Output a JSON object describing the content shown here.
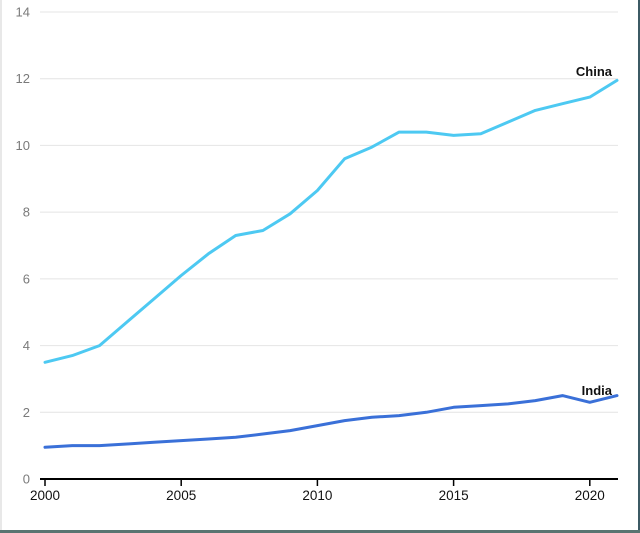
{
  "window": {
    "background": "#ffffff",
    "edge_left_color": "#e8e8e8",
    "edge_right_color": "#3c5a64",
    "edge_bottom_color": "#597471"
  },
  "chart_data": {
    "type": "line",
    "title": "",
    "xlabel": "",
    "ylabel": "",
    "x": [
      2000,
      2001,
      2002,
      2003,
      2004,
      2005,
      2006,
      2007,
      2008,
      2009,
      2010,
      2011,
      2012,
      2013,
      2014,
      2015,
      2016,
      2017,
      2018,
      2019,
      2020,
      2021
    ],
    "series": [
      {
        "name": "China",
        "color": "#4dc9f2",
        "values": [
          3.5,
          3.7,
          4.0,
          4.7,
          5.4,
          6.1,
          6.75,
          7.3,
          7.45,
          7.95,
          8.65,
          9.6,
          9.95,
          10.4,
          10.4,
          10.3,
          10.35,
          10.7,
          11.05,
          11.25,
          11.45,
          11.95
        ]
      },
      {
        "name": "India",
        "color": "#3a70d8",
        "values": [
          0.95,
          1.0,
          1.0,
          1.05,
          1.1,
          1.15,
          1.2,
          1.25,
          1.35,
          1.45,
          1.6,
          1.75,
          1.85,
          1.9,
          2.0,
          2.15,
          2.2,
          2.25,
          2.35,
          2.5,
          2.3,
          2.5
        ]
      }
    ],
    "xticks": [
      2000,
      2005,
      2010,
      2015,
      2020
    ],
    "yticks": [
      0,
      2,
      4,
      6,
      8,
      10,
      12,
      14
    ],
    "xlim": [
      2000,
      2021
    ],
    "ylim": [
      0,
      14
    ],
    "grid": true,
    "legend_position": "line-end-labels",
    "axis_color": "#000000",
    "grid_color": "#e4e4e4",
    "ytick_color": "#7a7a7a",
    "xtick_color": "#111111"
  }
}
